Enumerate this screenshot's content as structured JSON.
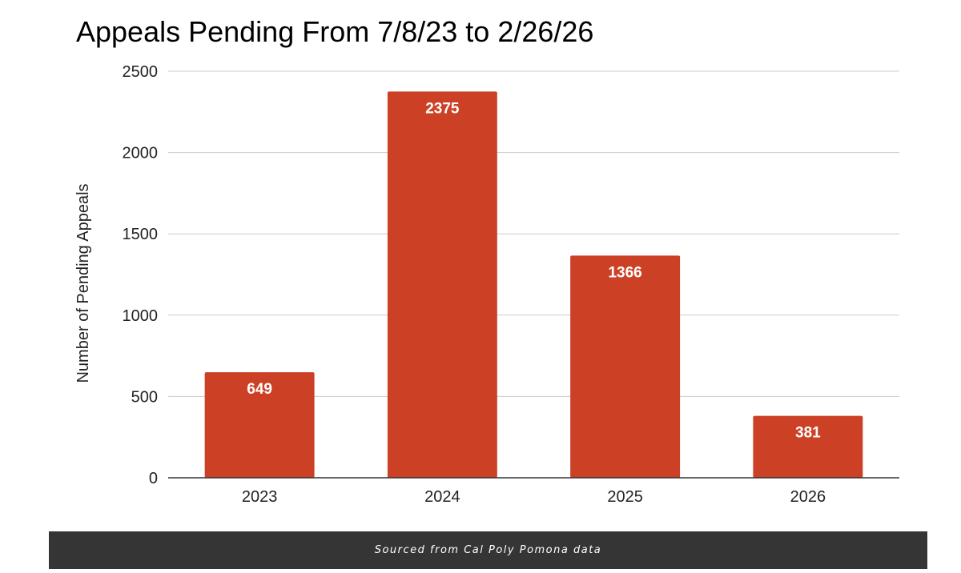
{
  "chart_data": {
    "type": "bar",
    "title": "Appeals Pending From 7/8/23 to 2/26/26",
    "xlabel": "",
    "ylabel": "Number of Pending Appeals",
    "categories": [
      "2023",
      "2024",
      "2025",
      "2026"
    ],
    "values": [
      649,
      2375,
      1366,
      381
    ],
    "data_labels": [
      "649",
      "2375",
      "1366",
      "381"
    ],
    "ylim": [
      0,
      2500
    ],
    "yticks": [
      0,
      500,
      1000,
      1500,
      2000,
      2500
    ],
    "grid": true,
    "legend": "none",
    "bar_color": "#cc4125",
    "grid_color": "#cccccc"
  },
  "caption": {
    "text": "Sourced from Cal Poly Pomona data"
  }
}
